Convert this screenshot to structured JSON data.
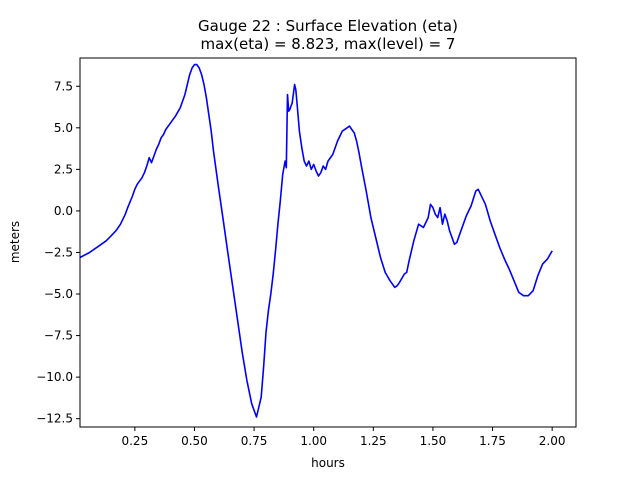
{
  "chart_data": {
    "type": "line",
    "title_line1": "Gauge 22 : Surface Elevation (eta)",
    "title_line2": "max(eta) =   8.823,    max(level) = 7",
    "xlabel": "hours",
    "ylabel": "meters",
    "xlim": [
      0.02,
      2.1
    ],
    "ylim": [
      -13.0,
      9.2
    ],
    "xticks": [
      0.25,
      0.5,
      0.75,
      1.0,
      1.25,
      1.5,
      1.75,
      2.0
    ],
    "xtick_labels": [
      "0.25",
      "0.50",
      "0.75",
      "1.00",
      "1.25",
      "1.50",
      "1.75",
      "2.00"
    ],
    "yticks": [
      -12.5,
      -10.0,
      -7.5,
      -5.0,
      -2.5,
      0.0,
      2.5,
      5.0,
      7.5
    ],
    "ytick_labels": [
      "−12.5",
      "−10.0",
      "−7.5",
      "−5.0",
      "−2.5",
      "0.0",
      "2.5",
      "5.0",
      "7.5"
    ],
    "grid": false,
    "series": [
      {
        "color": "#0000ff",
        "x": [
          0.02,
          0.06,
          0.1,
          0.13,
          0.15,
          0.17,
          0.19,
          0.21,
          0.22,
          0.24,
          0.25,
          0.26,
          0.28,
          0.29,
          0.3,
          0.31,
          0.32,
          0.33,
          0.34,
          0.35,
          0.36,
          0.37,
          0.38,
          0.4,
          0.42,
          0.44,
          0.46,
          0.47,
          0.48,
          0.49,
          0.5,
          0.51,
          0.52,
          0.53,
          0.54,
          0.55,
          0.56,
          0.57,
          0.58,
          0.6,
          0.62,
          0.64,
          0.66,
          0.68,
          0.7,
          0.72,
          0.74,
          0.76,
          0.78,
          0.79,
          0.8,
          0.81,
          0.82,
          0.83,
          0.84,
          0.85,
          0.86,
          0.87,
          0.88,
          0.885,
          0.89,
          0.895,
          0.9,
          0.91,
          0.92,
          0.925,
          0.93,
          0.94,
          0.95,
          0.96,
          0.97,
          0.98,
          0.99,
          1.0,
          1.01,
          1.02,
          1.03,
          1.04,
          1.05,
          1.06,
          1.08,
          1.1,
          1.12,
          1.14,
          1.15,
          1.16,
          1.17,
          1.18,
          1.19,
          1.2,
          1.22,
          1.24,
          1.26,
          1.28,
          1.3,
          1.32,
          1.34,
          1.35,
          1.36,
          1.38,
          1.39,
          1.4,
          1.42,
          1.44,
          1.46,
          1.48,
          1.49,
          1.5,
          1.51,
          1.52,
          1.53,
          1.54,
          1.55,
          1.56,
          1.57,
          1.58,
          1.59,
          1.6,
          1.62,
          1.64,
          1.66,
          1.68,
          1.69,
          1.7,
          1.71,
          1.72,
          1.74,
          1.76,
          1.78,
          1.8,
          1.82,
          1.84,
          1.86,
          1.88,
          1.9,
          1.92,
          1.94,
          1.96,
          1.98,
          2.0
        ],
        "y": [
          -2.8,
          -2.5,
          -2.1,
          -1.8,
          -1.5,
          -1.2,
          -0.8,
          -0.2,
          0.2,
          0.9,
          1.3,
          1.6,
          2.0,
          2.3,
          2.7,
          3.2,
          2.9,
          3.3,
          3.7,
          4.0,
          4.4,
          4.6,
          4.9,
          5.3,
          5.7,
          6.2,
          7.0,
          7.6,
          8.2,
          8.6,
          8.8,
          8.8,
          8.6,
          8.2,
          7.6,
          6.8,
          5.8,
          4.8,
          3.6,
          1.5,
          -0.5,
          -2.5,
          -4.5,
          -6.5,
          -8.5,
          -10.2,
          -11.6,
          -12.4,
          -11.2,
          -9.4,
          -7.3,
          -6.0,
          -5.0,
          -3.8,
          -2.4,
          -0.8,
          0.6,
          2.2,
          3.0,
          2.6,
          7.0,
          6.0,
          6.1,
          6.5,
          7.6,
          7.3,
          6.5,
          4.8,
          3.8,
          3.0,
          2.7,
          3.0,
          2.5,
          2.8,
          2.4,
          2.1,
          2.3,
          2.7,
          2.5,
          3.0,
          3.4,
          4.2,
          4.8,
          5.0,
          5.1,
          4.9,
          4.7,
          4.2,
          3.5,
          2.7,
          1.2,
          -0.4,
          -1.6,
          -2.8,
          -3.7,
          -4.2,
          -4.6,
          -4.5,
          -4.3,
          -3.8,
          -3.7,
          -3.0,
          -1.8,
          -0.8,
          -1.0,
          -0.4,
          0.4,
          0.2,
          -0.2,
          -0.4,
          0.2,
          -0.8,
          -0.2,
          -0.6,
          -1.2,
          -1.6,
          -2.0,
          -1.9,
          -1.1,
          -0.3,
          0.3,
          1.2,
          1.3,
          1.0,
          0.7,
          0.4,
          -0.6,
          -1.4,
          -2.2,
          -2.9,
          -3.5,
          -4.2,
          -4.9,
          -5.1,
          -5.1,
          -4.8,
          -3.9,
          -3.2,
          -2.9,
          -2.4
        ]
      }
    ]
  }
}
